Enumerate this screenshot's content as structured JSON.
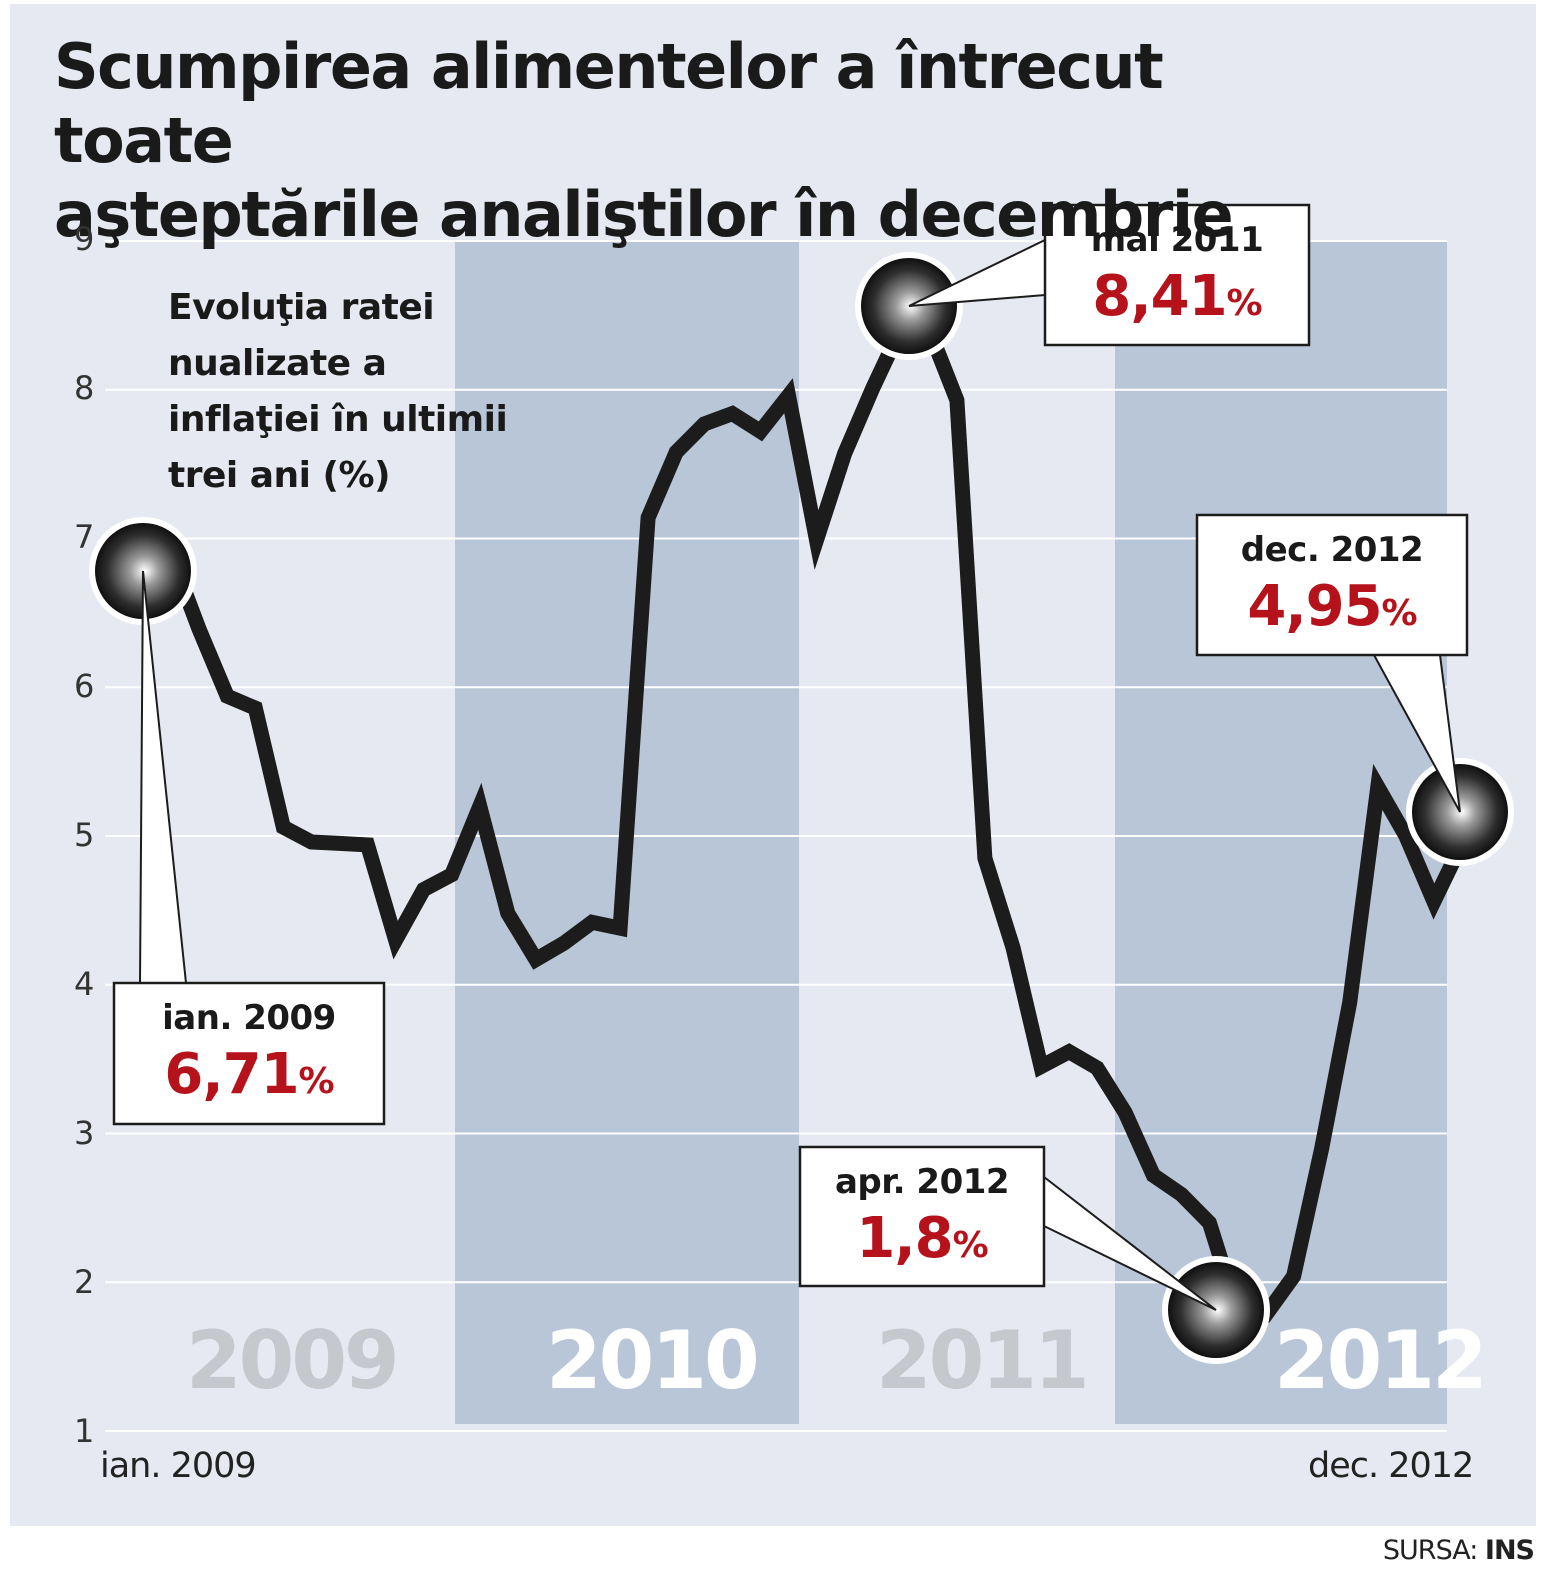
{
  "title_line1": "Scumpirea alimentelor a întrecut toate",
  "title_line2": "aşteptările analiştilor în decembrie",
  "source_prefix": "SURSA:",
  "source_name": "INS",
  "colors": {
    "panel": "#e6e9f1",
    "band": "#b9c6d7",
    "line": "#1c1c1c",
    "value": "#b5121b",
    "year_dark": "#c5c8cc",
    "year_light": "#ffffff"
  },
  "chart_data": {
    "type": "line",
    "title": "Evoluţia ratei nualizate a inflaţiei în ultimii trei ani (%)",
    "subtitle_lines": [
      "Evoluţia ratei",
      "nualizate a",
      "inflaţiei în ultimii",
      "trei ani (%)"
    ],
    "ylim": [
      1,
      9
    ],
    "y_ticks": [
      "1",
      "2",
      "3",
      "4",
      "5",
      "6",
      "7",
      "8",
      "9"
    ],
    "x_start_label": "ian. 2009",
    "x_end_label": "dec. 2012",
    "grid": true,
    "years": [
      {
        "label": "2009",
        "shaded": false
      },
      {
        "label": "2010",
        "shaded": true
      },
      {
        "label": "2011",
        "shaded": false
      },
      {
        "label": "2012",
        "shaded": true
      }
    ],
    "series": [
      {
        "values": [
          6.71,
          6.89,
          6.39,
          5.94,
          5.86,
          5.06,
          4.96,
          4.95,
          4.94,
          4.3,
          4.64,
          4.74,
          5.2,
          4.48,
          4.17,
          4.28,
          4.42,
          4.38,
          7.14,
          7.58,
          7.77,
          7.84,
          7.72,
          7.96,
          6.99,
          7.57,
          8.01,
          8.41,
          8.41,
          7.93,
          4.85,
          4.25,
          3.45,
          3.55,
          3.44,
          3.14,
          2.72,
          2.59,
          2.4,
          1.8,
          1.78,
          2.04,
          2.9,
          3.88,
          5.33,
          5.0,
          4.56,
          4.95
        ]
      }
    ],
    "annotations": [
      {
        "date": "ian. 2009",
        "value_text": "6,71",
        "pct": "%"
      },
      {
        "date": "mai 2011",
        "value_text": "8,41",
        "pct": "%"
      },
      {
        "date": "apr. 2012",
        "value_text": "1,8",
        "pct": "%"
      },
      {
        "date": "dec. 2012",
        "value_text": "4,95",
        "pct": "%"
      }
    ]
  }
}
